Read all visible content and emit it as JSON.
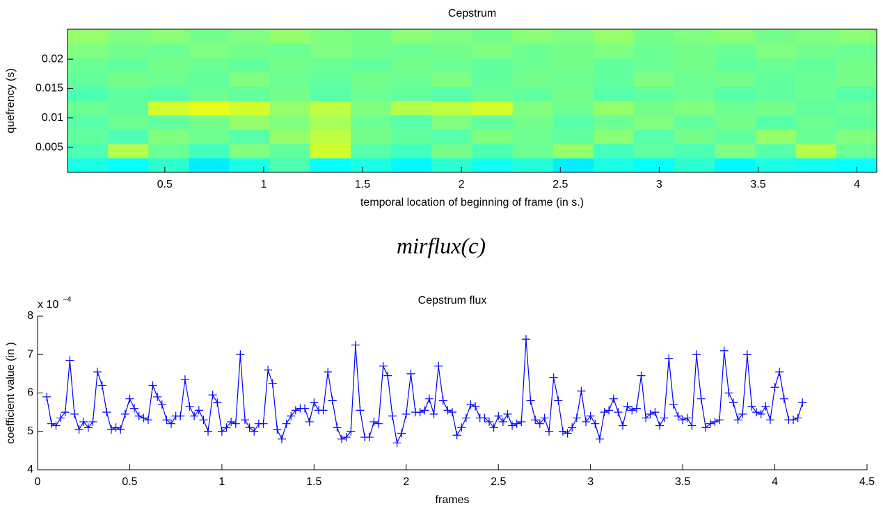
{
  "caption": "mirflux(c)",
  "chart_data": [
    {
      "type": "heatmap",
      "title": "Cepstrum",
      "x_label": "temporal location of beginning of frame (in s.)",
      "y_label": "quefrency (s)",
      "xlim": [
        0.008,
        4.1
      ],
      "xticks": [
        0.5,
        1,
        1.5,
        2,
        2.5,
        3,
        3.5,
        4
      ],
      "ylim": [
        0.00075,
        0.0251
      ],
      "yticks": [
        0.005,
        0.01,
        0.015,
        0.02
      ],
      "colormap": "jet",
      "z": [
        [
          0.4,
          0.38,
          0.42,
          0.36,
          0.4,
          0.45,
          0.38,
          0.4,
          0.37,
          0.42,
          0.39,
          0.41,
          0.36,
          0.4,
          0.38,
          0.42,
          0.37,
          0.4,
          0.39,
          0.38
        ],
        [
          0.45,
          0.55,
          0.48,
          0.44,
          0.5,
          0.47,
          0.58,
          0.46,
          0.44,
          0.49,
          0.45,
          0.48,
          0.52,
          0.44,
          0.47,
          0.45,
          0.5,
          0.46,
          0.55,
          0.48
        ],
        [
          0.47,
          0.45,
          0.5,
          0.48,
          0.46,
          0.52,
          0.56,
          0.49,
          0.47,
          0.46,
          0.5,
          0.48,
          0.47,
          0.51,
          0.46,
          0.49,
          0.47,
          0.52,
          0.48,
          0.5
        ],
        [
          0.46,
          0.48,
          0.47,
          0.49,
          0.52,
          0.5,
          0.54,
          0.48,
          0.46,
          0.5,
          0.47,
          0.49,
          0.46,
          0.48,
          0.5,
          0.47,
          0.49,
          0.46,
          0.48,
          0.47
        ],
        [
          0.48,
          0.47,
          0.58,
          0.6,
          0.58,
          0.52,
          0.56,
          0.5,
          0.55,
          0.56,
          0.58,
          0.5,
          0.48,
          0.52,
          0.49,
          0.5,
          0.48,
          0.49,
          0.47,
          0.48
        ],
        [
          0.45,
          0.47,
          0.46,
          0.48,
          0.47,
          0.49,
          0.46,
          0.48,
          0.47,
          0.46,
          0.48,
          0.47,
          0.49,
          0.46,
          0.47,
          0.48,
          0.46,
          0.47,
          0.48,
          0.46
        ],
        [
          0.47,
          0.49,
          0.48,
          0.47,
          0.5,
          0.48,
          0.47,
          0.49,
          0.48,
          0.5,
          0.47,
          0.49,
          0.48,
          0.47,
          0.5,
          0.48,
          0.49,
          0.47,
          0.48,
          0.49
        ],
        [
          0.48,
          0.47,
          0.49,
          0.48,
          0.47,
          0.49,
          0.48,
          0.47,
          0.49,
          0.48,
          0.47,
          0.48,
          0.49,
          0.47,
          0.48,
          0.49,
          0.47,
          0.48,
          0.47,
          0.49
        ],
        [
          0.5,
          0.49,
          0.48,
          0.5,
          0.49,
          0.48,
          0.5,
          0.49,
          0.48,
          0.49,
          0.5,
          0.48,
          0.49,
          0.5,
          0.48,
          0.49,
          0.48,
          0.5,
          0.49,
          0.48
        ],
        [
          0.52,
          0.5,
          0.51,
          0.49,
          0.5,
          0.52,
          0.5,
          0.49,
          0.51,
          0.5,
          0.49,
          0.51,
          0.5,
          0.52,
          0.49,
          0.5,
          0.51,
          0.49,
          0.5,
          0.51
        ]
      ]
    },
    {
      "type": "line",
      "title": "Cepstrum flux",
      "x_label": "frames",
      "y_label": "coefficient value (in )",
      "multiplier_text": "x 10",
      "multiplier_exponent": "−4",
      "xlim": [
        0,
        4.5
      ],
      "xticks": [
        0,
        0.5,
        1,
        1.5,
        2,
        2.5,
        3,
        3.5,
        4,
        4.5
      ],
      "ylim": [
        4,
        8
      ],
      "yticks": [
        4,
        5,
        6,
        7,
        8
      ],
      "color": "#0000ff",
      "marker": "+",
      "x": [
        0.05,
        0.075,
        0.1,
        0.125,
        0.15,
        0.175,
        0.2,
        0.225,
        0.25,
        0.275,
        0.3,
        0.325,
        0.35,
        0.375,
        0.4,
        0.425,
        0.45,
        0.475,
        0.5,
        0.525,
        0.55,
        0.575,
        0.6,
        0.625,
        0.65,
        0.675,
        0.7,
        0.725,
        0.75,
        0.775,
        0.8,
        0.825,
        0.85,
        0.875,
        0.9,
        0.925,
        0.95,
        0.975,
        1,
        1.025,
        1.05,
        1.075,
        1.1,
        1.125,
        1.15,
        1.175,
        1.2,
        1.225,
        1.25,
        1.275,
        1.3,
        1.325,
        1.35,
        1.375,
        1.4,
        1.425,
        1.45,
        1.475,
        1.5,
        1.525,
        1.55,
        1.575,
        1.6,
        1.625,
        1.65,
        1.675,
        1.7,
        1.725,
        1.75,
        1.775,
        1.8,
        1.825,
        1.85,
        1.875,
        1.9,
        1.925,
        1.95,
        1.975,
        2,
        2.025,
        2.05,
        2.075,
        2.1,
        2.125,
        2.15,
        2.175,
        2.2,
        2.225,
        2.25,
        2.275,
        2.3,
        2.325,
        2.35,
        2.375,
        2.4,
        2.425,
        2.45,
        2.475,
        2.5,
        2.525,
        2.55,
        2.575,
        2.6,
        2.625,
        2.65,
        2.675,
        2.7,
        2.725,
        2.75,
        2.775,
        2.8,
        2.825,
        2.85,
        2.875,
        2.9,
        2.925,
        2.95,
        2.975,
        3,
        3.025,
        3.05,
        3.075,
        3.1,
        3.125,
        3.15,
        3.175,
        3.2,
        3.225,
        3.25,
        3.275,
        3.3,
        3.325,
        3.35,
        3.375,
        3.4,
        3.425,
        3.45,
        3.475,
        3.5,
        3.525,
        3.55,
        3.575,
        3.6,
        3.625,
        3.65,
        3.675,
        3.7,
        3.725,
        3.75,
        3.775,
        3.8,
        3.825,
        3.85,
        3.875,
        3.9,
        3.925,
        3.95,
        3.975,
        4,
        4.025,
        4.05,
        4.075,
        4.1,
        4.125,
        4.15
      ],
      "values": [
        5.9,
        5.2,
        5.15,
        5.35,
        5.5,
        6.85,
        5.45,
        5.05,
        5.25,
        5.1,
        5.25,
        6.55,
        6.2,
        5.5,
        5.05,
        5.1,
        5.05,
        5.45,
        5.85,
        5.6,
        5.4,
        5.35,
        5.3,
        6.2,
        5.9,
        5.7,
        5.3,
        5.2,
        5.4,
        5.4,
        6.35,
        5.65,
        5.4,
        5.55,
        5.3,
        5.0,
        5.95,
        5.75,
        5.0,
        5.1,
        5.25,
        5.2,
        7.0,
        5.3,
        5.1,
        5.0,
        5.2,
        5.2,
        6.6,
        6.25,
        5.05,
        4.8,
        5.2,
        5.4,
        5.55,
        5.6,
        5.6,
        5.25,
        5.75,
        5.55,
        5.55,
        6.55,
        5.8,
        5.1,
        4.8,
        4.85,
        5.0,
        7.25,
        5.55,
        4.85,
        4.85,
        5.25,
        5.2,
        6.7,
        6.45,
        5.4,
        4.7,
        4.95,
        5.45,
        6.5,
        5.5,
        5.5,
        5.55,
        5.85,
        5.45,
        6.7,
        5.8,
        5.55,
        5.5,
        4.9,
        5.1,
        5.35,
        5.7,
        5.65,
        5.35,
        5.35,
        5.25,
        5.1,
        5.4,
        5.25,
        5.45,
        5.15,
        5.2,
        5.25,
        7.4,
        5.8,
        5.3,
        5.2,
        5.35,
        5.0,
        6.4,
        5.8,
        5.0,
        4.95,
        5.1,
        5.35,
        6.05,
        5.25,
        5.4,
        5.2,
        4.8,
        5.5,
        5.55,
        5.85,
        5.5,
        5.15,
        5.65,
        5.55,
        5.6,
        6.45,
        5.35,
        5.45,
        5.5,
        5.15,
        5.35,
        6.9,
        5.7,
        5.4,
        5.3,
        5.35,
        5.15,
        7.0,
        5.85,
        5.1,
        5.2,
        5.25,
        5.3,
        7.1,
        6.0,
        5.75,
        5.3,
        5.45,
        7.0,
        5.65,
        5.5,
        5.45,
        5.65,
        5.3,
        6.15,
        6.55,
        5.85,
        5.3,
        5.3,
        5.35,
        5.75
      ]
    }
  ]
}
